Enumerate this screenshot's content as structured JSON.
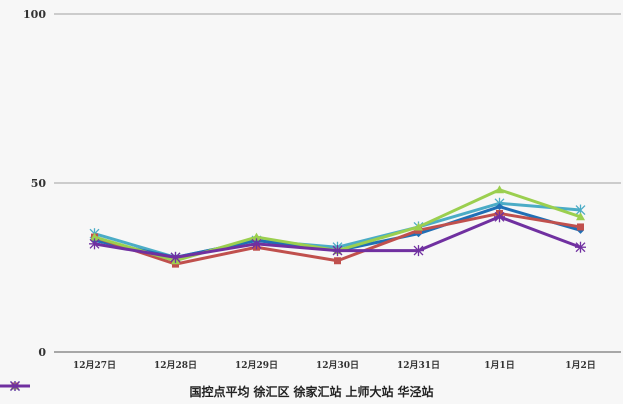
{
  "chart_data": {
    "type": "line",
    "title": "",
    "xlabel": "",
    "ylabel": "",
    "ylim": [
      0,
      100
    ],
    "yticks": [
      "0",
      "50",
      "100"
    ],
    "grid": true,
    "legend_position": "bottom",
    "categories": [
      "12月27日",
      "12月28日",
      "12月29日",
      "12月30日",
      "12月31日",
      "1月1日",
      "1月2日"
    ],
    "series": [
      {
        "name": "国控点平均",
        "color": "#4bacc6",
        "marker": "asterisk",
        "values": [
          35,
          28,
          33,
          31,
          37,
          44,
          42
        ]
      },
      {
        "name": "徐汇区",
        "color": "#1f6fb5",
        "marker": "diamond",
        "values": [
          33,
          28,
          33,
          30,
          35,
          43,
          36
        ]
      },
      {
        "name": "徐家汇站",
        "color": "#c0504d",
        "marker": "square",
        "values": [
          34,
          26,
          31,
          27,
          36,
          41,
          37
        ]
      },
      {
        "name": "上师大站",
        "color": "#9bcf4f",
        "marker": "triangle",
        "values": [
          34,
          27,
          34,
          30,
          37,
          48,
          40
        ]
      },
      {
        "name": "华泾站",
        "color": "#7030a0",
        "marker": "x-star",
        "values": [
          32,
          28,
          32,
          30,
          30,
          40,
          31
        ]
      }
    ]
  }
}
